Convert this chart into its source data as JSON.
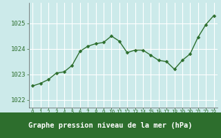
{
  "x": [
    0,
    1,
    2,
    3,
    4,
    5,
    6,
    7,
    8,
    9,
    10,
    11,
    12,
    13,
    14,
    15,
    16,
    17,
    18,
    19,
    20,
    21,
    22,
    23
  ],
  "y": [
    1022.55,
    1022.65,
    1022.8,
    1023.05,
    1023.1,
    1023.35,
    1023.9,
    1024.1,
    1024.2,
    1024.25,
    1024.5,
    1024.3,
    1023.85,
    1023.95,
    1023.95,
    1023.75,
    1023.55,
    1023.5,
    1023.2,
    1023.55,
    1023.8,
    1024.45,
    1024.95,
    1025.3
  ],
  "line_color": "#2d6e2d",
  "marker": "D",
  "marker_size": 2.5,
  "line_width": 1.0,
  "bg_color": "#cceaea",
  "grid_color": "#b0d8d8",
  "title": "Graphe pression niveau de la mer (hPa)",
  "title_fontsize": 7.5,
  "title_bg": "#2d6e2d",
  "yticks": [
    1022,
    1023,
    1024,
    1025
  ],
  "ylim": [
    1021.7,
    1025.8
  ],
  "xlim": [
    -0.5,
    23.5
  ],
  "xticks": [
    0,
    1,
    2,
    3,
    4,
    5,
    6,
    7,
    8,
    9,
    10,
    11,
    12,
    13,
    14,
    15,
    16,
    17,
    18,
    19,
    20,
    21,
    22,
    23
  ],
  "tick_fontsize": 5.5,
  "tick_color": "#2d6e2d",
  "ytick_fontsize": 6.5
}
